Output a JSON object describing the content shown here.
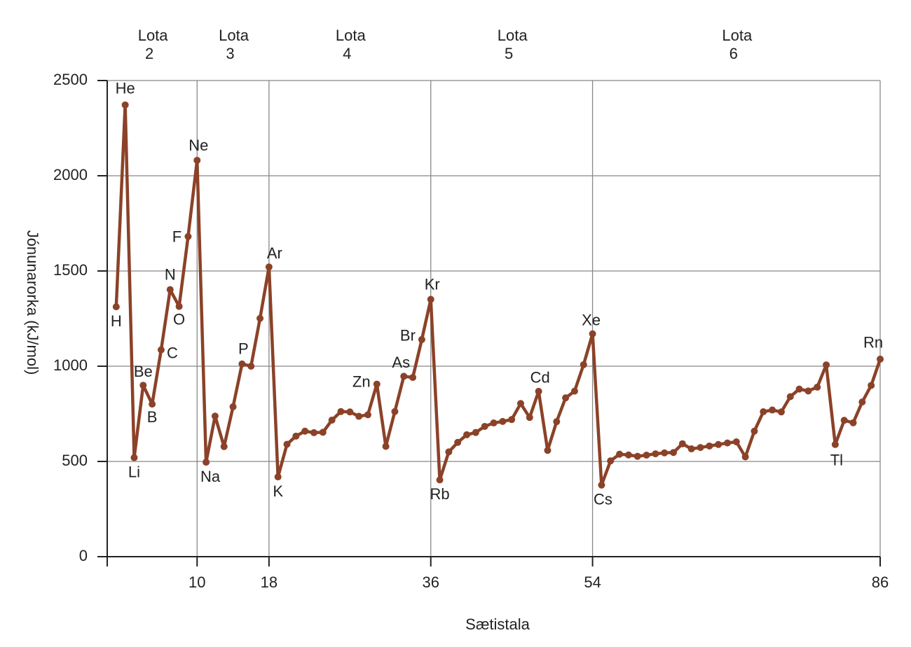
{
  "chart_data": {
    "type": "line",
    "x_label": "Sætistala",
    "y_label": "Jónunarorka (kJ/mol)",
    "x": [
      1,
      2,
      3,
      4,
      5,
      6,
      7,
      8,
      9,
      10,
      11,
      12,
      13,
      14,
      15,
      16,
      17,
      18,
      19,
      20,
      21,
      22,
      23,
      24,
      25,
      26,
      27,
      28,
      29,
      30,
      31,
      32,
      33,
      34,
      35,
      36,
      37,
      38,
      39,
      40,
      41,
      42,
      43,
      44,
      45,
      46,
      47,
      48,
      49,
      50,
      51,
      52,
      53,
      54,
      55,
      56,
      57,
      58,
      59,
      60,
      61,
      62,
      63,
      64,
      65,
      66,
      67,
      68,
      69,
      70,
      71,
      72,
      73,
      74,
      75,
      76,
      77,
      78,
      79,
      80,
      81,
      82,
      83,
      84,
      85,
      86
    ],
    "series": [
      {
        "name": "Jónunarorka",
        "color": "#8b4228",
        "values": [
          1312,
          2372,
          520,
          900,
          801,
          1086,
          1402,
          1314,
          1681,
          2081,
          496,
          738,
          578,
          787,
          1012,
          1000,
          1251,
          1521,
          419,
          590,
          633,
          659,
          651,
          653,
          717,
          762,
          760,
          737,
          745,
          906,
          579,
          762,
          947,
          941,
          1140,
          1351,
          403,
          550,
          600,
          640,
          652,
          684,
          702,
          710,
          720,
          804,
          731,
          868,
          558,
          709,
          834,
          869,
          1008,
          1170,
          376,
          503,
          538,
          534,
          527,
          533,
          540,
          545,
          547,
          593,
          566,
          573,
          581,
          589,
          597,
          603,
          524,
          659,
          761,
          770,
          760,
          840,
          880,
          870,
          890,
          1007,
          589,
          716,
          703,
          812,
          899,
          1037
        ]
      }
    ],
    "point_labels": [
      {
        "text": "H",
        "x": 1
      },
      {
        "text": "He",
        "x": 2
      },
      {
        "text": "Li",
        "x": 3
      },
      {
        "text": "Be",
        "x": 4
      },
      {
        "text": "B",
        "x": 5
      },
      {
        "text": "C",
        "x": 6
      },
      {
        "text": "N",
        "x": 7
      },
      {
        "text": "O",
        "x": 8
      },
      {
        "text": "F",
        "x": 9
      },
      {
        "text": "Ne",
        "x": 10
      },
      {
        "text": "Na",
        "x": 11
      },
      {
        "text": "P",
        "x": 15
      },
      {
        "text": "Ar",
        "x": 18
      },
      {
        "text": "K",
        "x": 19
      },
      {
        "text": "Zn",
        "x": 30
      },
      {
        "text": "As",
        "x": 33
      },
      {
        "text": "Br",
        "x": 35
      },
      {
        "text": "Kr",
        "x": 36
      },
      {
        "text": "Rb",
        "x": 37
      },
      {
        "text": "Cd",
        "x": 48
      },
      {
        "text": "Xe",
        "x": 54
      },
      {
        "text": "Cs",
        "x": 55
      },
      {
        "text": "Tl",
        "x": 81
      },
      {
        "text": "Rn",
        "x": 86
      }
    ],
    "periods": [
      {
        "label": "Lota",
        "number": "2"
      },
      {
        "label": "Lota",
        "number": "3"
      },
      {
        "label": "Lota",
        "number": "4"
      },
      {
        "label": "Lota",
        "number": "5"
      },
      {
        "label": "Lota",
        "number": "6"
      }
    ],
    "xlim": [
      0,
      86
    ],
    "xticks": [
      10,
      18,
      36,
      54,
      86
    ],
    "ylim": [
      0,
      2500
    ],
    "yticks": [
      0,
      500,
      1000,
      1500,
      2000,
      2500
    ],
    "grid": true
  }
}
